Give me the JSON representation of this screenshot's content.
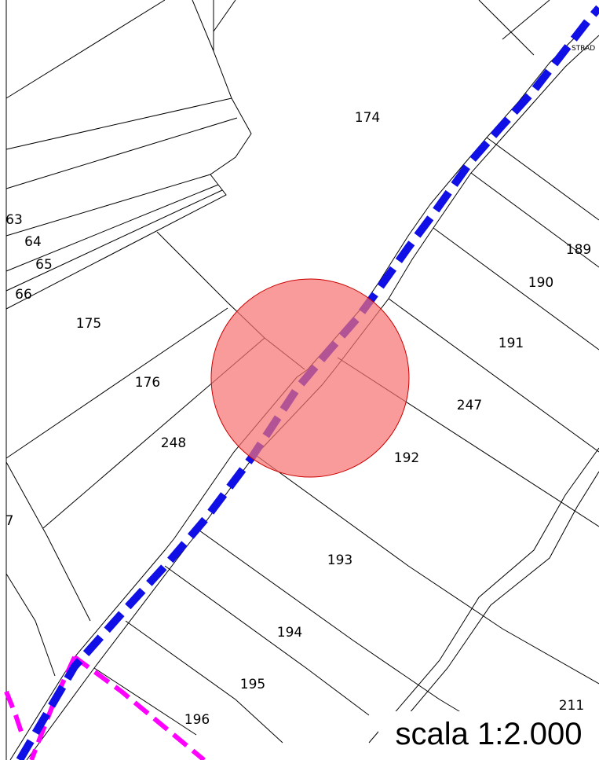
{
  "parcels": [
    {
      "id": "174",
      "label": "174"
    },
    {
      "id": "175",
      "label": "175"
    },
    {
      "id": "176",
      "label": "176"
    },
    {
      "id": "248",
      "label": "248"
    },
    {
      "id": "189",
      "label": "189"
    },
    {
      "id": "190",
      "label": "190"
    },
    {
      "id": "191",
      "label": "191"
    },
    {
      "id": "247",
      "label": "247"
    },
    {
      "id": "192",
      "label": "192"
    },
    {
      "id": "193",
      "label": "193"
    },
    {
      "id": "194",
      "label": "194"
    },
    {
      "id": "195",
      "label": "195"
    },
    {
      "id": "196",
      "label": "196"
    },
    {
      "id": "211",
      "label": "211"
    },
    {
      "id": "64",
      "label": "64"
    },
    {
      "id": "65",
      "label": "65"
    },
    {
      "id": "66",
      "label": "66"
    },
    {
      "id": "63-partial",
      "label": "63"
    },
    {
      "id": "7-partial",
      "label": "7"
    }
  ],
  "street_label": "STRAD",
  "scale_text": "scala 1:2.000",
  "colors": {
    "parcel_line": "#000000",
    "road_route": "#1010e6",
    "boundary_route": "#ff00ff",
    "highlight_fill": "#f77070",
    "highlight_stroke": "#cc0000"
  }
}
